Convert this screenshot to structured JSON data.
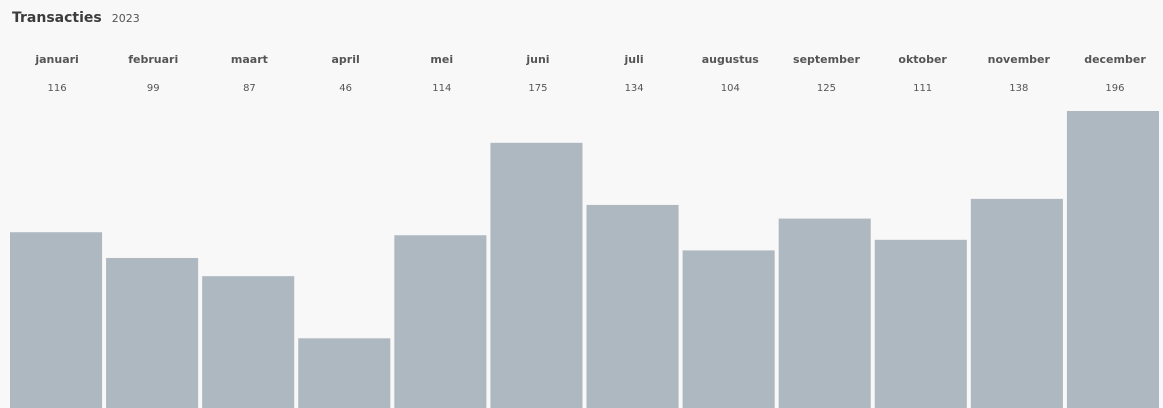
{
  "header": {
    "title": "Transacties",
    "year": "2023"
  },
  "chart_data": {
    "type": "bar",
    "title": "Transacties",
    "subtitle": "2023",
    "categories": [
      "januari",
      "februari",
      "maart",
      "april",
      "mei",
      "juni",
      "juli",
      "augustus",
      "september",
      "oktober",
      "november",
      "december"
    ],
    "values": [
      116,
      99,
      87,
      46,
      114,
      175,
      134,
      104,
      125,
      111,
      138,
      196
    ],
    "value_labels": [
      "116",
      "99",
      "87",
      "46",
      "114",
      "175",
      "134",
      "104",
      "125",
      "111",
      "138",
      "196"
    ],
    "bar_color": "#aeb8c0",
    "background": "#f8f8f8",
    "grid": false,
    "legend": "none"
  }
}
